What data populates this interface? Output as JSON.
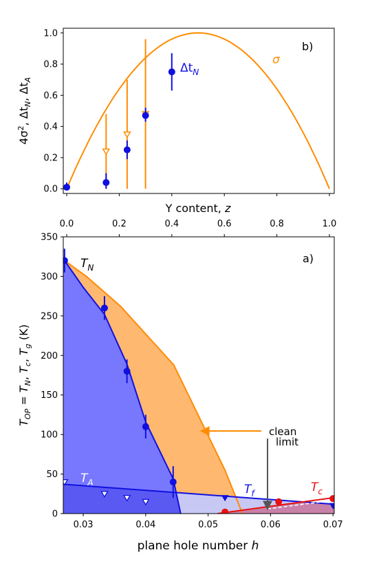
{
  "colors": {
    "blue": "#1010e0",
    "orange": "#ff8c00",
    "red": "#e81010",
    "blue_fill": "#7878ff",
    "blue_fill_dark": "#5a5af2",
    "orange_fill": "#ffb870",
    "lavender": "#c8c8f5",
    "pink_fill": "#c8749a",
    "gray_arrow": "#555555"
  },
  "chart_data": [
    {
      "panel_label": "b)",
      "type": "scatter",
      "xlabel": "Y content, z",
      "ylabel": "4σ², Δt_N, Δt_A",
      "xlim": [
        0,
        1
      ],
      "ylim": [
        -0.03,
        1.03
      ],
      "x_ticks": [
        "0.0",
        "0.2",
        "0.4",
        "0.6",
        "0.8",
        "1.0"
      ],
      "y_ticks": [
        "0.0",
        "0.2",
        "0.4",
        "0.6",
        "0.8",
        "1.0"
      ],
      "series": [
        {
          "name": "σ",
          "color": "#ff8c00",
          "kind": "curve",
          "formula": "4z(1-z)"
        },
        {
          "name": "Δt_N",
          "color": "#1010e0",
          "kind": "points",
          "points": [
            {
              "x": 0.0,
              "y": 0.01,
              "lo": 0.0,
              "hi": 0.04
            },
            {
              "x": 0.15,
              "y": 0.04,
              "lo": 0.0,
              "hi": 0.1
            },
            {
              "x": 0.23,
              "y": 0.25,
              "lo": 0.19,
              "hi": 0.31
            },
            {
              "x": 0.3,
              "y": 0.47,
              "lo": 0.43,
              "hi": 0.52
            },
            {
              "x": 0.4,
              "y": 0.75,
              "lo": 0.63,
              "hi": 0.87
            }
          ]
        },
        {
          "name": "Δt_A",
          "color": "#ff8c00",
          "kind": "open-triangles-down",
          "points": [
            {
              "x": 0.15,
              "y": 0.24,
              "lo": 0.0,
              "hi": 0.48
            },
            {
              "x": 0.23,
              "y": 0.35,
              "lo": 0.0,
              "hi": 0.7
            },
            {
              "x": 0.3,
              "y": 0.48,
              "lo": 0.0,
              "hi": 0.96
            }
          ]
        }
      ],
      "annotations": [
        "σ",
        "Δt_N"
      ]
    },
    {
      "panel_label": "a)",
      "type": "scatter",
      "xlabel": "plane hole number h",
      "ylabel": "T_OP = T_N, T_c, T_g (K)",
      "xlim": [
        0.0268,
        0.0702
      ],
      "ylim": [
        0,
        350
      ],
      "x_ticks": [
        "0.03",
        "0.04",
        "0.05",
        "0.06",
        "0.07"
      ],
      "y_ticks": [
        "0",
        "50",
        "100",
        "150",
        "200",
        "250",
        "300",
        "350"
      ],
      "series": [
        {
          "name": "T_N",
          "color": "#1010e0",
          "kind": "points",
          "points": [
            {
              "x": 0.027,
              "y": 320,
              "err": 15
            },
            {
              "x": 0.0334,
              "y": 260,
              "err": 15
            },
            {
              "x": 0.037,
              "y": 180,
              "err": 15
            },
            {
              "x": 0.04,
              "y": 110,
              "err": 15
            },
            {
              "x": 0.0444,
              "y": 40,
              "err": 20
            }
          ],
          "curve": [
            [
              0.027,
              320
            ],
            [
              0.03,
              286
            ],
            [
              0.0334,
              252
            ],
            [
              0.037,
              189
            ],
            [
              0.04,
              116
            ],
            [
              0.0444,
              44
            ],
            [
              0.0456,
              0
            ]
          ]
        },
        {
          "name": "T_N upper (orange)",
          "color": "#ff8c00",
          "kind": "curve",
          "curve": [
            [
              0.027,
              320
            ],
            [
              0.0305,
              300
            ],
            [
              0.036,
              262
            ],
            [
              0.0445,
              188
            ],
            [
              0.049,
              115
            ],
            [
              0.0527,
              55
            ],
            [
              0.0555,
              0
            ]
          ]
        },
        {
          "name": "T_A",
          "color": "#1010e0",
          "kind": "open-triangles-down",
          "points": [
            {
              "x": 0.027,
              "y": 40
            },
            {
              "x": 0.0334,
              "y": 25
            },
            {
              "x": 0.037,
              "y": 20
            },
            {
              "x": 0.04,
              "y": 15
            }
          ]
        },
        {
          "name": "T_f",
          "color": "#1010e0",
          "kind": "filled-triangles-down",
          "points": [
            {
              "x": 0.0527,
              "y": 20
            },
            {
              "x": 0.07,
              "y": 10
            }
          ],
          "line": [
            [
              0.027,
              37
            ],
            [
              0.07,
              12
            ]
          ]
        },
        {
          "name": "T_c",
          "color": "#e81010",
          "kind": "points",
          "points": [
            {
              "x": 0.0527,
              "y": 2
            },
            {
              "x": 0.0613,
              "y": 15
            },
            {
              "x": 0.07,
              "y": 19
            }
          ],
          "line": [
            [
              0.0515,
              0
            ],
            [
              0.07,
              20
            ]
          ]
        }
      ],
      "annotations": [
        "T_N",
        "T_A",
        "T_f",
        "T_c",
        "clean",
        "limit"
      ]
    }
  ],
  "text": {
    "b_label": "b)",
    "a_label": "a)",
    "sigma": "σ",
    "dtN_base": "Δt",
    "dtN_sub": "N",
    "top_xlabel_main": "Y content, ",
    "top_xlabel_var": "z",
    "top_ylabel_a": "4σ",
    "top_ylabel_sup": "2",
    "top_ylabel_b": ", Δt",
    "top_ylabel_sub1": "N",
    "top_ylabel_c": ", Δt",
    "top_ylabel_sub2": "A",
    "TN_base": "T",
    "TN_sub": "N",
    "TA_base": "T",
    "TA_sub": "A",
    "Tf_base": "T",
    "Tf_sub": "f",
    "Tc_base": "T",
    "Tc_sub": "c",
    "clean": "clean",
    "limit": "limit",
    "bot_xlabel_main": "plane hole number ",
    "bot_xlabel_var": "h",
    "bot_ylabel_T1": "T",
    "bot_ylabel_sub1": "OP",
    "bot_ylabel_eq": " = ",
    "bot_ylabel_T2": "T",
    "bot_ylabel_sub2": "N",
    "bot_ylabel_c1": ", ",
    "bot_ylabel_T3": "T",
    "bot_ylabel_sub3": "c",
    "bot_ylabel_c2": ", ",
    "bot_ylabel_T4": "T",
    "bot_ylabel_sub4": "g",
    "bot_ylabel_unit": " (K)"
  }
}
